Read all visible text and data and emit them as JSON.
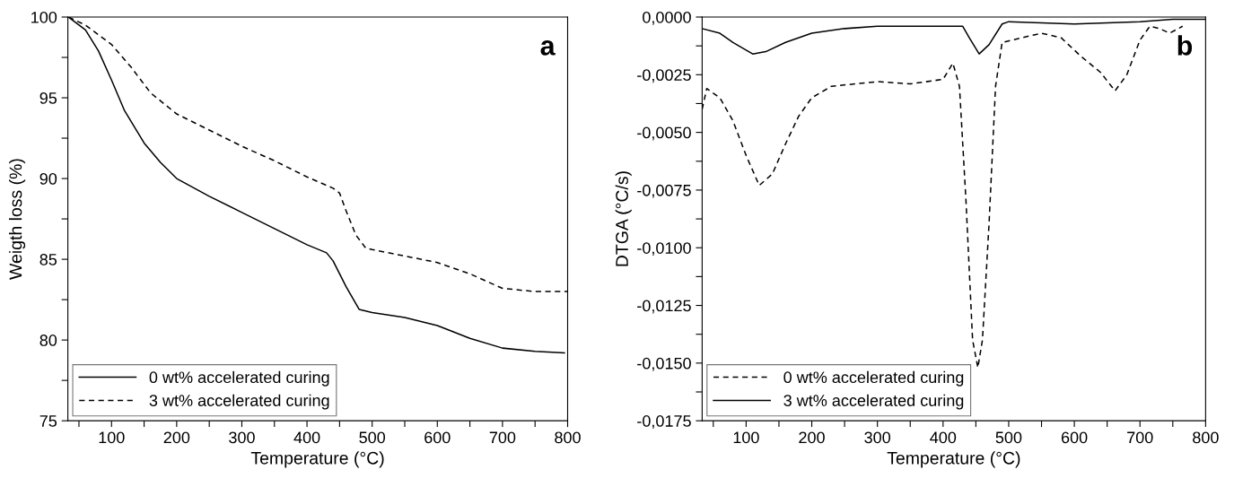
{
  "chart_data": [
    {
      "type": "line",
      "xlabel": "Temperature (°C)",
      "ylabel": "Weigth loss (%)",
      "annotations": [
        "a"
      ],
      "legend": "bottom left",
      "grid": false,
      "xlim": [
        33,
        800
      ],
      "ylim": [
        75,
        100
      ],
      "xticks": [
        {
          "value": 50,
          "label": null
        },
        100,
        {
          "value": 150,
          "label": null
        },
        200,
        {
          "value": 250,
          "label": null
        },
        300,
        {
          "value": 350,
          "label": null
        },
        400,
        {
          "value": 450,
          "label": null
        },
        500,
        {
          "value": 550,
          "label": null
        },
        600,
        {
          "value": 650,
          "label": null
        },
        700,
        {
          "value": 750,
          "label": null
        },
        800
      ],
      "yticks": [
        75,
        {
          "value": 77.5,
          "label": null
        },
        80,
        {
          "value": 82.5,
          "label": null
        },
        85,
        {
          "value": 87.5,
          "label": null
        },
        90,
        {
          "value": 92.5,
          "label": null
        },
        95,
        {
          "value": 97.5,
          "label": null
        },
        100
      ],
      "series": [
        {
          "name": "0 wt% accelerated curing",
          "color": "#000000",
          "line_style": "solid",
          "x": [
            34,
            60,
            80,
            100,
            120,
            150,
            175,
            200,
            250,
            300,
            350,
            400,
            430,
            440,
            460,
            480,
            500,
            550,
            600,
            650,
            700,
            750,
            795
          ],
          "values": [
            100,
            99.2,
            97.9,
            96.1,
            94.2,
            92.2,
            91.0,
            90.0,
            88.9,
            87.9,
            86.9,
            85.9,
            85.4,
            84.9,
            83.3,
            81.9,
            81.7,
            81.4,
            80.9,
            80.1,
            79.5,
            79.3,
            79.2
          ]
        },
        {
          "name": "3 wt% accelerated curing",
          "color": "#000000",
          "line_style": "dashed",
          "x": [
            34,
            60,
            100,
            130,
            160,
            200,
            250,
            300,
            350,
            400,
            440,
            450,
            460,
            475,
            490,
            500,
            550,
            600,
            650,
            700,
            750,
            800
          ],
          "values": [
            100,
            99.5,
            98.3,
            96.9,
            95.3,
            94.0,
            93.0,
            92.0,
            91.1,
            90.1,
            89.4,
            89.1,
            88.0,
            86.5,
            85.7,
            85.6,
            85.2,
            84.8,
            84.1,
            83.2,
            83.0,
            83.0
          ]
        }
      ]
    },
    {
      "type": "line",
      "xlabel": "Temperature (°C)",
      "ylabel": "DTGA (°C/s)",
      "annotations": [
        "b"
      ],
      "legend": "bottom left",
      "grid": false,
      "xlim": [
        33,
        800
      ],
      "ylim": [
        -0.0175,
        0
      ],
      "xticks": [
        {
          "value": 50,
          "label": null
        },
        100,
        {
          "value": 150,
          "label": null
        },
        200,
        {
          "value": 250,
          "label": null
        },
        300,
        {
          "value": 350,
          "label": null
        },
        400,
        {
          "value": 450,
          "label": null
        },
        500,
        {
          "value": 550,
          "label": null
        },
        600,
        {
          "value": 650,
          "label": null
        },
        700,
        {
          "value": 750,
          "label": null
        },
        800
      ],
      "yticks": [
        {
          "value": -0.0175,
          "label": "-0,0175"
        },
        {
          "value": -0.01625,
          "label": null
        },
        {
          "value": -0.015,
          "label": "-0,0150"
        },
        {
          "value": -0.01375,
          "label": null
        },
        {
          "value": -0.0125,
          "label": "-0,0125"
        },
        {
          "value": -0.01125,
          "label": null
        },
        {
          "value": -0.01,
          "label": "-0,0100"
        },
        {
          "value": -0.00875,
          "label": null
        },
        {
          "value": -0.0075,
          "label": "-0,0075"
        },
        {
          "value": -0.00625,
          "label": null
        },
        {
          "value": -0.005,
          "label": "-0,0050"
        },
        {
          "value": -0.00375,
          "label": null
        },
        {
          "value": -0.0025,
          "label": "-0,0025"
        },
        {
          "value": -0.00125,
          "label": null
        },
        {
          "value": 0,
          "label": "0,0000"
        }
      ],
      "series": [
        {
          "name": "0 wt% accelerated curing",
          "color": "#000000",
          "line_style": "dashed",
          "x": [
            33,
            40,
            60,
            80,
            100,
            120,
            140,
            160,
            180,
            200,
            230,
            300,
            350,
            400,
            415,
            425,
            435,
            445,
            453,
            460,
            470,
            480,
            490,
            520,
            550,
            580,
            610,
            640,
            662,
            680,
            700,
            715,
            730,
            745,
            765
          ],
          "values": [
            -0.004,
            -0.0031,
            -0.0035,
            -0.0045,
            -0.006,
            -0.0073,
            -0.0068,
            -0.0055,
            -0.0043,
            -0.0035,
            -0.003,
            -0.0028,
            -0.0029,
            -0.0027,
            -0.002,
            -0.003,
            -0.008,
            -0.014,
            -0.0152,
            -0.014,
            -0.009,
            -0.003,
            -0.0011,
            -0.0009,
            -0.0007,
            -0.0009,
            -0.0017,
            -0.0024,
            -0.0032,
            -0.0025,
            -0.001,
            -0.0004,
            -0.0005,
            -0.0007,
            -0.0004
          ]
        },
        {
          "name": "3 wt% accelerated curing",
          "color": "#000000",
          "line_style": "solid",
          "x": [
            33,
            60,
            80,
            110,
            130,
            160,
            200,
            250,
            300,
            400,
            430,
            440,
            455,
            470,
            490,
            500,
            600,
            700,
            750,
            800
          ],
          "values": [
            -0.0005,
            -0.0007,
            -0.0011,
            -0.0016,
            -0.0015,
            -0.0011,
            -0.0007,
            -0.0005,
            -0.0004,
            -0.0004,
            -0.0004,
            -0.0009,
            -0.0016,
            -0.0012,
            -0.0003,
            -0.0002,
            -0.0003,
            -0.0002,
            -0.0001,
            -0.0001
          ]
        }
      ]
    }
  ]
}
